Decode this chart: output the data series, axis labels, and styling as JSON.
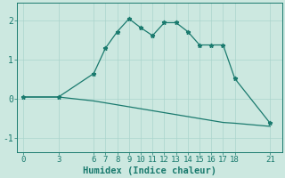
{
  "xlabel": "Humidex (Indice chaleur)",
  "background_color": "#cce8e0",
  "line_color": "#1a7a6e",
  "series1_x": [
    0,
    3,
    6,
    7,
    8,
    9,
    10,
    11,
    12,
    13,
    14,
    15,
    16,
    17,
    18,
    21
  ],
  "series1_y": [
    0.05,
    0.05,
    0.65,
    1.3,
    1.72,
    2.05,
    1.82,
    1.62,
    1.95,
    1.95,
    1.72,
    1.38,
    1.38,
    1.38,
    0.52,
    -0.62
  ],
  "series2_x": [
    0,
    3,
    6,
    7,
    8,
    9,
    10,
    11,
    12,
    13,
    14,
    15,
    16,
    17,
    18,
    21
  ],
  "series2_y": [
    0.05,
    0.05,
    -0.05,
    -0.1,
    -0.15,
    -0.2,
    -0.25,
    -0.3,
    -0.35,
    -0.4,
    -0.45,
    -0.5,
    -0.55,
    -0.6,
    -0.62,
    -0.7
  ],
  "xticks": [
    0,
    3,
    6,
    7,
    8,
    9,
    10,
    11,
    12,
    13,
    14,
    15,
    16,
    17,
    18,
    21
  ],
  "yticks": [
    -1,
    0,
    1,
    2
  ],
  "xlim": [
    -0.5,
    22
  ],
  "ylim": [
    -1.35,
    2.45
  ],
  "grid_color": "#aad4cc",
  "font_color": "#1a7a6e",
  "tick_fontsize": 6.5,
  "label_fontsize": 7.5
}
